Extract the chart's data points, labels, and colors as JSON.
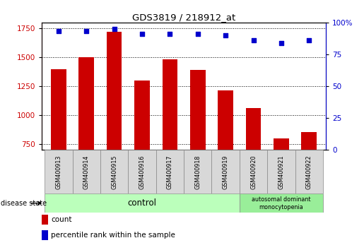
{
  "title": "GDS3819 / 218912_at",
  "samples": [
    "GSM400913",
    "GSM400914",
    "GSM400915",
    "GSM400916",
    "GSM400917",
    "GSM400918",
    "GSM400919",
    "GSM400920",
    "GSM400921",
    "GSM400922"
  ],
  "counts": [
    1400,
    1500,
    1720,
    1300,
    1480,
    1390,
    1215,
    1060,
    800,
    855
  ],
  "percentiles": [
    93,
    93,
    95,
    91,
    91,
    91,
    90,
    86,
    84,
    86
  ],
  "ylim_left": [
    700,
    1800
  ],
  "ylim_right": [
    0,
    100
  ],
  "yticks_left": [
    750,
    1000,
    1250,
    1500,
    1750
  ],
  "yticks_right": [
    0,
    25,
    50,
    75,
    100
  ],
  "bar_color": "#cc0000",
  "dot_color": "#0000cc",
  "bg_color": "#ffffff",
  "control_color": "#bbffbb",
  "disease_color": "#99ee99",
  "sample_bg_color": "#d8d8d8",
  "control_indices": [
    0,
    1,
    2,
    3,
    4,
    5,
    6
  ],
  "disease_indices": [
    7,
    8,
    9
  ],
  "legend_count_label": "count",
  "legend_pct_label": "percentile rank within the sample",
  "disease_state_label": "disease state",
  "control_label": "control",
  "disease_label": "autosomal dominant\nmonocytopenia"
}
